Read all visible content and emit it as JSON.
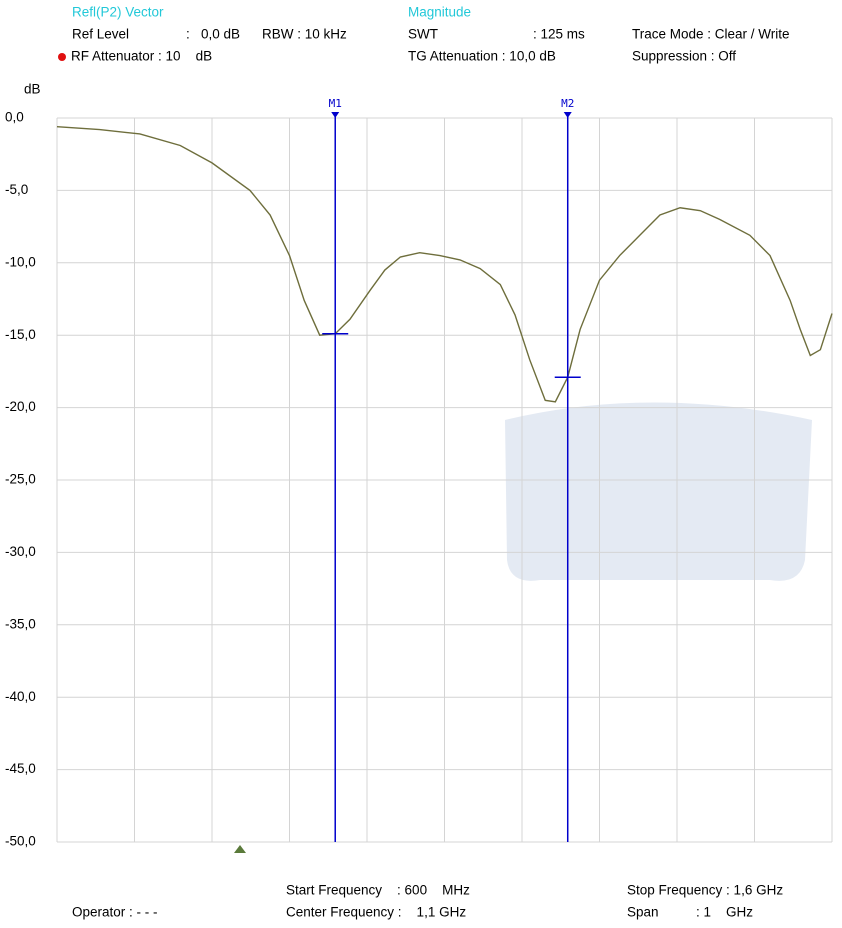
{
  "header": {
    "measurement": "Refl(P2) Vector",
    "ref_level": "Ref Level",
    "ref_level_value": ":   0,0 dB",
    "rbw": "RBW : 10 kHz",
    "rf_attenuator": "RF Attenuator : 10    dB",
    "format": "Magnitude",
    "swt": "SWT",
    "swt_value": ": 125 ms",
    "tg_attenuation": "TG Attenuation : 10,0 dB",
    "trace_mode": "Trace Mode : Clear / Write",
    "suppression": "Suppression : Off"
  },
  "footer": {
    "start_frequency": "Start Frequency    : 600    MHz",
    "center_frequency": "Center Frequency :    1,1 GHz",
    "stop_frequency": "Stop Frequency : 1,6 GHz",
    "span": "Span          : 1    GHz",
    "operator": "Operator : - - -"
  },
  "chart_data": {
    "type": "line",
    "ylabel": "dB",
    "xlim": [
      600,
      1600
    ],
    "xticks": [
      600,
      700,
      800,
      900,
      1000,
      1100,
      1200,
      1300,
      1400,
      1500,
      1600
    ],
    "ylim": [
      -50,
      0
    ],
    "yticks": [
      {
        "value": 0,
        "label": "0,0"
      },
      {
        "value": -5,
        "label": "-5,0"
      },
      {
        "value": -10,
        "label": "-10,0"
      },
      {
        "value": -15,
        "label": "-15,0"
      },
      {
        "value": -20,
        "label": "-20,0"
      },
      {
        "value": -25,
        "label": "-25,0"
      },
      {
        "value": -30,
        "label": "-30,0"
      },
      {
        "value": -35,
        "label": "-35,0"
      },
      {
        "value": -40,
        "label": "-40,0"
      },
      {
        "value": -45,
        "label": "-45,0"
      },
      {
        "value": -50,
        "label": "-50,0"
      }
    ],
    "grid": true,
    "x": [
      600,
      655,
      707,
      759,
      800,
      849,
      875,
      900,
      919,
      939,
      959,
      978,
      1004,
      1023,
      1043,
      1068,
      1094,
      1120,
      1146,
      1172,
      1191,
      1210,
      1230,
      1243,
      1259,
      1275,
      1300,
      1326,
      1352,
      1378,
      1404,
      1430,
      1455,
      1494,
      1520,
      1546,
      1559,
      1572,
      1585,
      1600
    ],
    "series": [
      {
        "color": "#6e6e3c",
        "values": [
          -0.6,
          -0.8,
          -1.1,
          -1.9,
          -3.1,
          -5.0,
          -6.7,
          -9.5,
          -12.6,
          -15.0,
          -14.9,
          -13.9,
          -11.9,
          -10.5,
          -9.6,
          -9.3,
          -9.5,
          -9.8,
          -10.4,
          -11.5,
          -13.6,
          -16.7,
          -19.5,
          -19.6,
          -17.9,
          -14.6,
          -11.2,
          -9.5,
          -8.1,
          -6.7,
          -6.2,
          -6.4,
          -7.0,
          -8.1,
          -9.5,
          -12.6,
          -14.6,
          -16.4,
          -16.0,
          -13.5
        ]
      }
    ],
    "markers": [
      {
        "name": "M1",
        "x": 959,
        "value": -14.9,
        "color": "#0000cc"
      },
      {
        "name": "M2",
        "x": 1259,
        "value": -17.9,
        "color": "#0000cc"
      }
    ]
  }
}
